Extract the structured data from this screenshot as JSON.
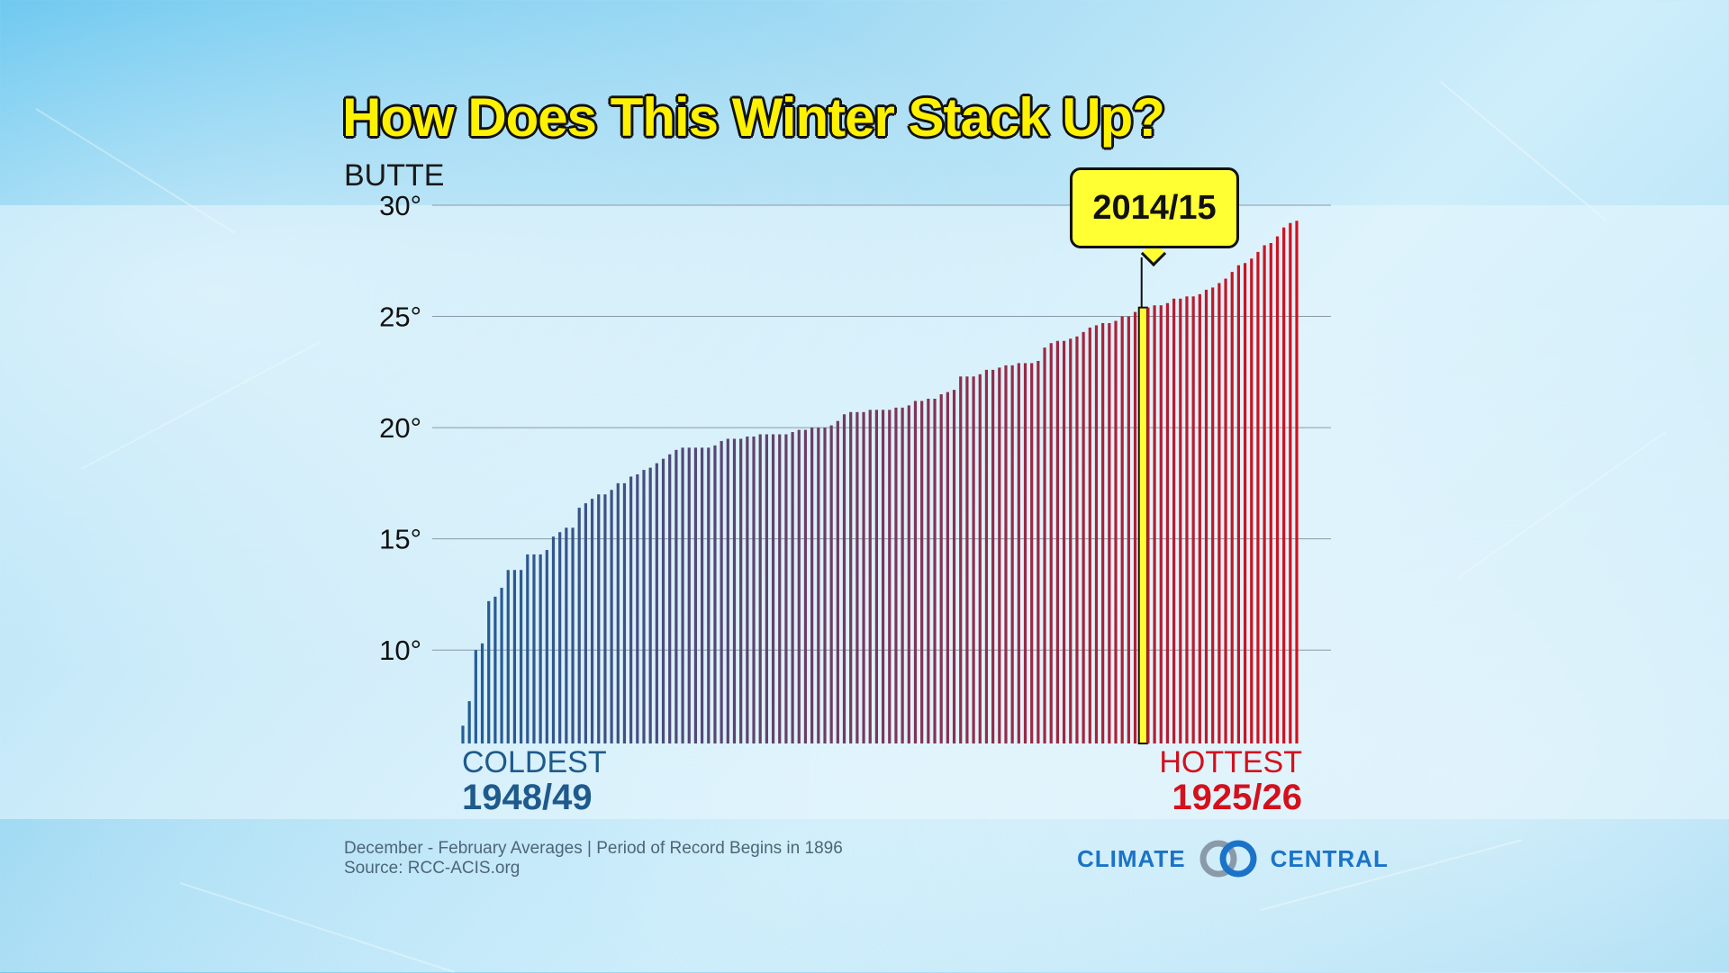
{
  "title": "How Does This Winter Stack Up?",
  "location": "BUTTE",
  "highlight": {
    "label": "2014/15",
    "value": 25.4
  },
  "coldest": {
    "label": "COLDEST",
    "year": "1948/49"
  },
  "hottest": {
    "label": "HOTTEST",
    "year": "1925/26"
  },
  "footer": {
    "line1": "December - February Averages | Period of Record Begins in 1896",
    "line2": "Source: RCC-ACIS.org"
  },
  "brand": {
    "left": "CLIMATE",
    "right": "CENTRAL"
  },
  "colors": {
    "cold": "#215e9a",
    "hot": "#d4101c",
    "highlight": "#ffff33",
    "title": "#fff200"
  },
  "chart_data": {
    "type": "bar",
    "title": "How Does This Winter Stack Up?",
    "subtitle": "BUTTE",
    "xlabel": "",
    "ylabel": "",
    "ylim": [
      5.8,
      30
    ],
    "yticks": [
      10,
      15,
      20,
      25,
      30
    ],
    "ytick_labels": [
      "10°",
      "15°",
      "20°",
      "25°",
      "30°"
    ],
    "grid": true,
    "highlight_index": 105,
    "values": [
      6.6,
      7.7,
      10.0,
      10.3,
      12.2,
      12.4,
      12.8,
      13.6,
      13.6,
      13.6,
      14.3,
      14.3,
      14.3,
      14.5,
      15.1,
      15.3,
      15.5,
      15.5,
      16.4,
      16.6,
      16.8,
      17.0,
      17.0,
      17.2,
      17.5,
      17.5,
      17.8,
      17.9,
      18.1,
      18.2,
      18.4,
      18.6,
      18.8,
      19.0,
      19.1,
      19.1,
      19.1,
      19.1,
      19.1,
      19.2,
      19.4,
      19.5,
      19.5,
      19.5,
      19.6,
      19.6,
      19.7,
      19.7,
      19.7,
      19.7,
      19.7,
      19.8,
      19.9,
      19.9,
      20.0,
      20.0,
      20.0,
      20.1,
      20.3,
      20.6,
      20.7,
      20.7,
      20.7,
      20.8,
      20.8,
      20.8,
      20.8,
      20.9,
      20.9,
      21.0,
      21.2,
      21.2,
      21.3,
      21.3,
      21.5,
      21.6,
      21.7,
      22.3,
      22.3,
      22.3,
      22.4,
      22.6,
      22.6,
      22.7,
      22.8,
      22.8,
      22.9,
      22.9,
      22.9,
      23.0,
      23.6,
      23.8,
      23.9,
      23.9,
      24.0,
      24.1,
      24.3,
      24.5,
      24.6,
      24.7,
      24.7,
      24.8,
      25.0,
      25.0,
      25.2,
      25.4,
      25.4,
      25.5,
      25.5,
      25.6,
      25.8,
      25.8,
      25.9,
      25.9,
      26.0,
      26.2,
      26.3,
      26.5,
      26.7,
      27.0,
      27.3,
      27.4,
      27.6,
      27.9,
      28.2,
      28.3,
      28.6,
      29.0,
      29.2,
      29.3
    ]
  }
}
